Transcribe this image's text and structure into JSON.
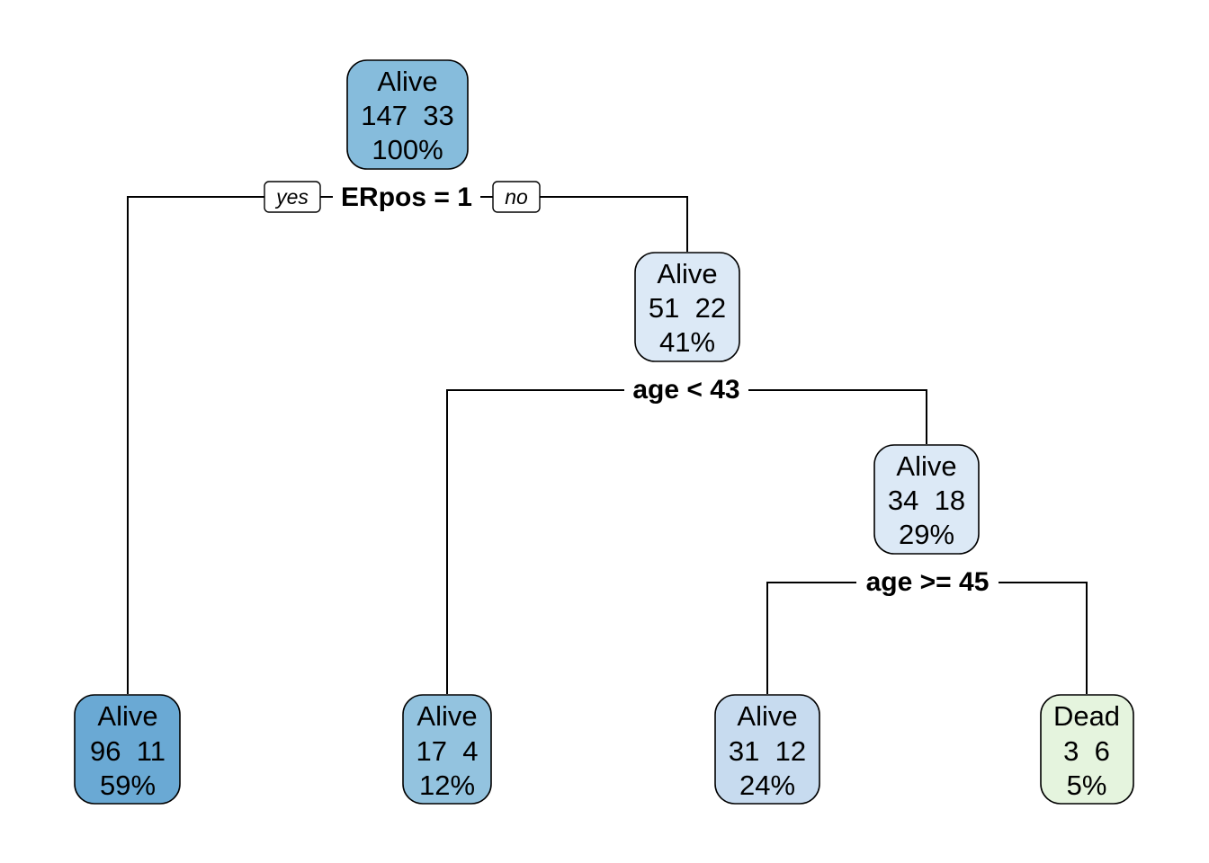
{
  "tree": {
    "nodes": {
      "root": {
        "class": "Alive",
        "counts": "147  33",
        "percent": "100%",
        "fill": "#86bcdc"
      },
      "n2": {
        "class": "Alive",
        "counts": "96  11",
        "percent": "59%",
        "fill": "#6aa9d4"
      },
      "n3": {
        "class": "Alive",
        "counts": "51  22",
        "percent": "41%",
        "fill": "#dce9f6"
      },
      "n6": {
        "class": "Alive",
        "counts": "17  4",
        "percent": "12%",
        "fill": "#93c3df"
      },
      "n7": {
        "class": "Alive",
        "counts": "34  18",
        "percent": "29%",
        "fill": "#dce9f6"
      },
      "n14": {
        "class": "Alive",
        "counts": "31  12",
        "percent": "24%",
        "fill": "#c7dbef"
      },
      "n15": {
        "class": "Dead",
        "counts": "3  6",
        "percent": "5%",
        "fill": "#e5f4de"
      }
    },
    "splits": {
      "s1": "ERpos = 1",
      "s3": "age < 43",
      "s7": "age >= 45"
    },
    "branch_labels": {
      "yes": "yes",
      "no": "no"
    }
  }
}
